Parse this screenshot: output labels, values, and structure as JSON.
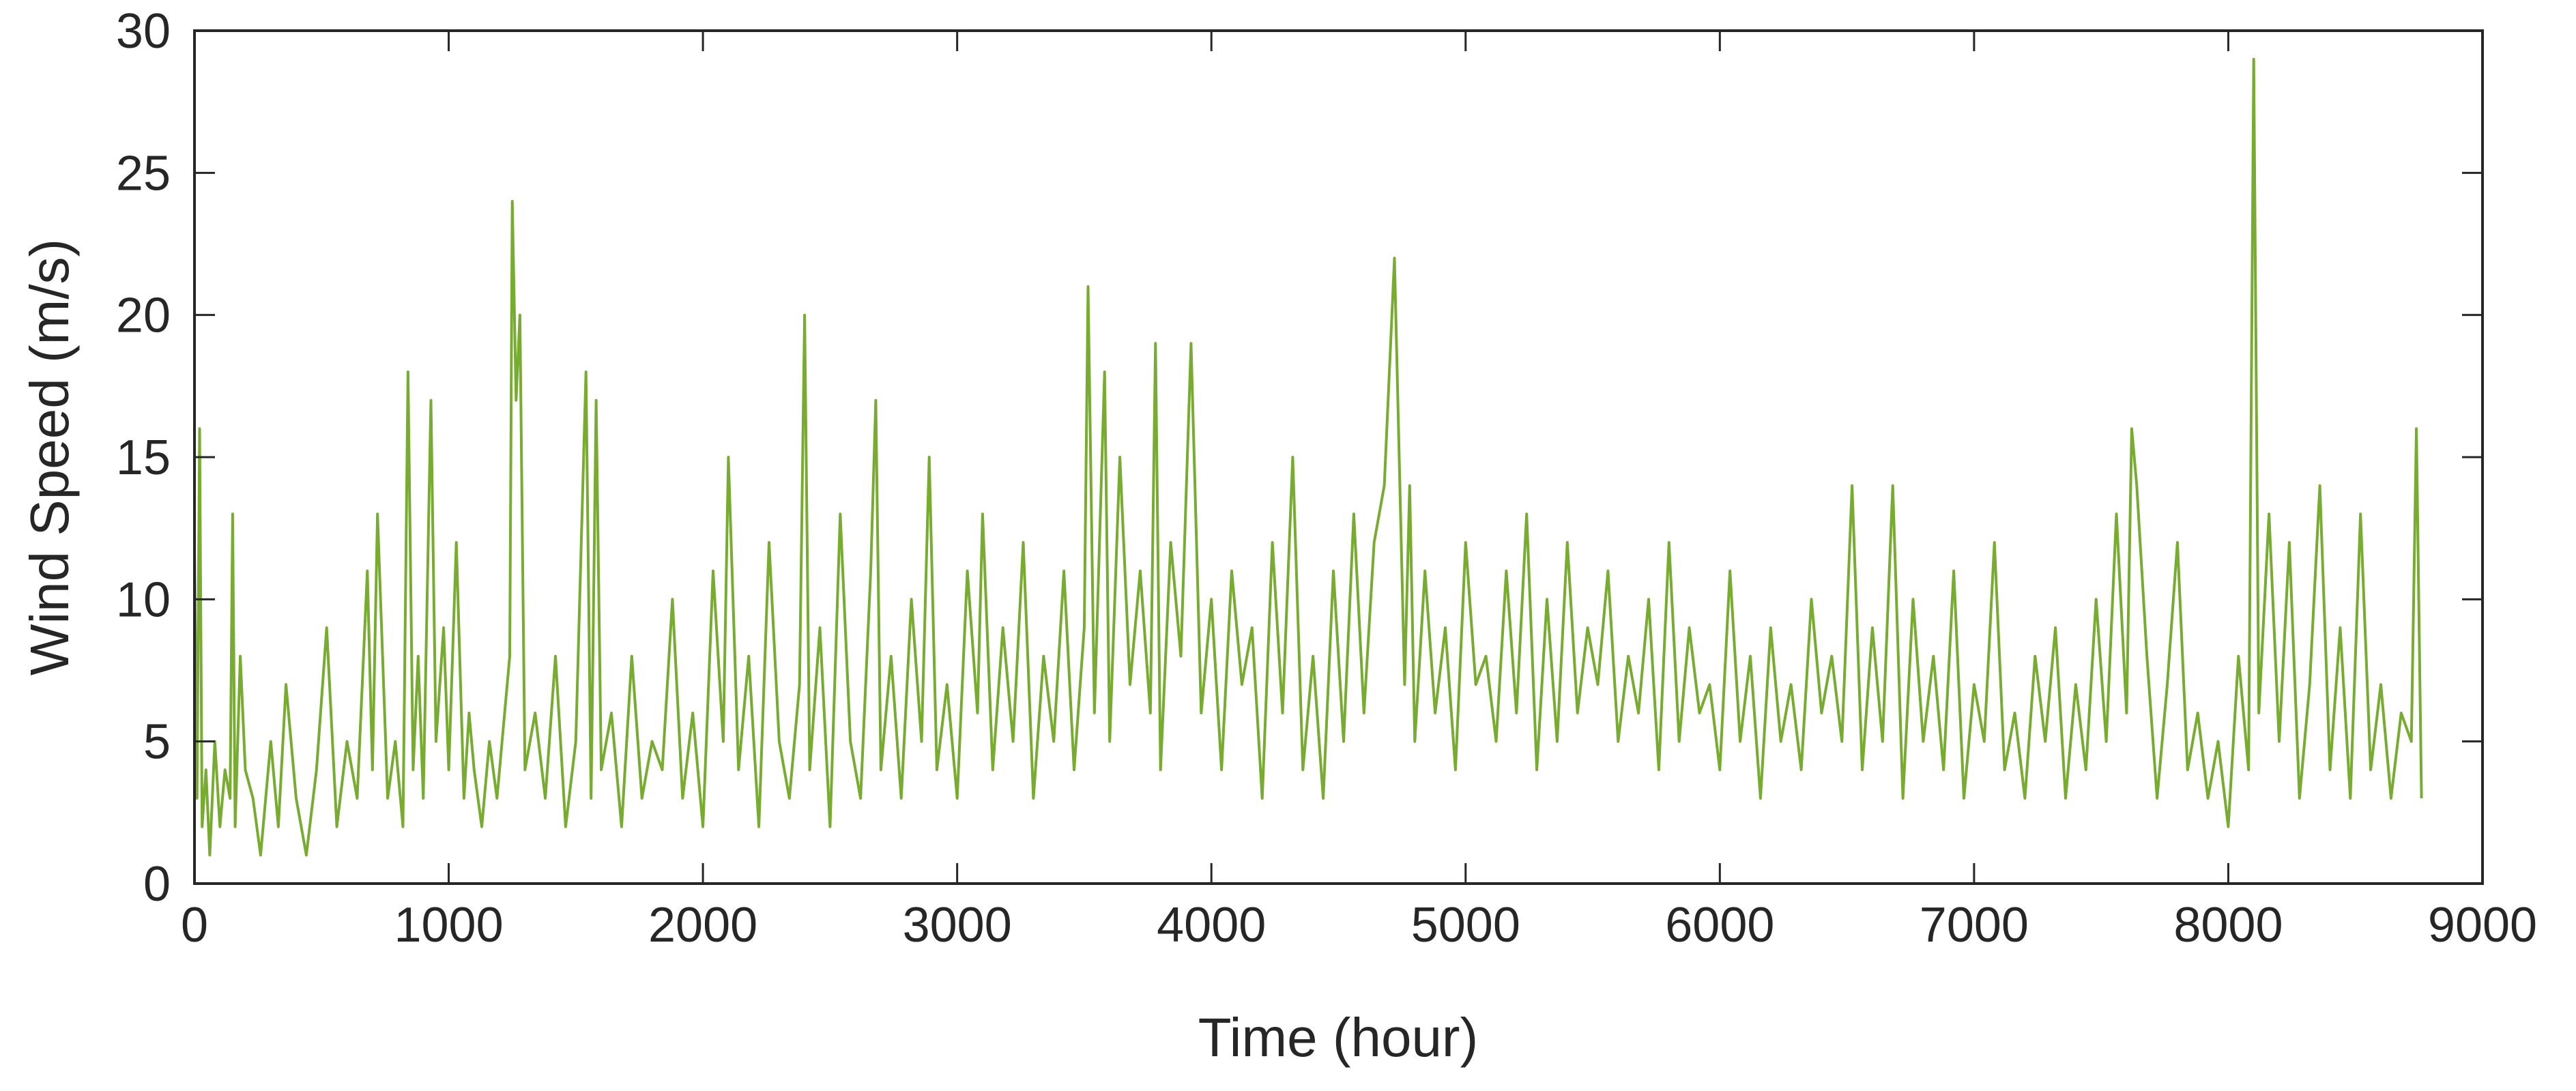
{
  "chart_data": {
    "type": "line",
    "title": "",
    "xlabel": "Time (hour)",
    "ylabel": "Wind Speed (m/s)",
    "xlim": [
      0,
      9000
    ],
    "ylim": [
      0,
      30
    ],
    "xticks": [
      0,
      1000,
      2000,
      3000,
      4000,
      5000,
      6000,
      7000,
      8000,
      9000
    ],
    "yticks": [
      0,
      5,
      10,
      15,
      20,
      25,
      30
    ],
    "grid": false,
    "legend": "none",
    "line_color": "#77ac30",
    "series": [
      {
        "x": [
          0,
          10,
          20,
          30,
          45,
          60,
          80,
          100,
          120,
          140,
          150,
          160,
          180,
          200,
          230,
          260,
          300,
          330,
          360,
          400,
          440,
          480,
          520,
          560,
          600,
          640,
          680,
          700,
          720,
          760,
          790,
          820,
          840,
          860,
          880,
          900,
          930,
          950,
          980,
          1000,
          1030,
          1060,
          1080,
          1100,
          1130,
          1160,
          1190,
          1220,
          1240,
          1250,
          1265,
          1280,
          1300,
          1340,
          1380,
          1420,
          1460,
          1500,
          1540,
          1560,
          1580,
          1600,
          1640,
          1680,
          1720,
          1760,
          1800,
          1840,
          1880,
          1920,
          1960,
          2000,
          2040,
          2080,
          2100,
          2140,
          2180,
          2220,
          2260,
          2300,
          2340,
          2380,
          2400,
          2420,
          2460,
          2500,
          2540,
          2580,
          2620,
          2660,
          2680,
          2700,
          2740,
          2780,
          2820,
          2860,
          2890,
          2920,
          2960,
          3000,
          3040,
          3080,
          3100,
          3140,
          3180,
          3220,
          3260,
          3300,
          3340,
          3380,
          3420,
          3460,
          3500,
          3515,
          3540,
          3580,
          3600,
          3640,
          3680,
          3720,
          3760,
          3780,
          3800,
          3840,
          3880,
          3920,
          3960,
          4000,
          4040,
          4080,
          4120,
          4160,
          4200,
          4240,
          4280,
          4320,
          4360,
          4400,
          4440,
          4480,
          4520,
          4560,
          4600,
          4640,
          4680,
          4720,
          4760,
          4780,
          4800,
          4840,
          4880,
          4920,
          4960,
          5000,
          5040,
          5080,
          5120,
          5160,
          5200,
          5240,
          5280,
          5320,
          5360,
          5400,
          5440,
          5480,
          5520,
          5560,
          5600,
          5640,
          5680,
          5720,
          5760,
          5800,
          5840,
          5880,
          5920,
          5960,
          6000,
          6040,
          6080,
          6120,
          6160,
          6200,
          6240,
          6280,
          6320,
          6360,
          6400,
          6440,
          6480,
          6520,
          6560,
          6600,
          6640,
          6680,
          6720,
          6760,
          6800,
          6840,
          6880,
          6920,
          6960,
          7000,
          7040,
          7080,
          7120,
          7160,
          7200,
          7240,
          7280,
          7320,
          7360,
          7400,
          7440,
          7480,
          7520,
          7560,
          7600,
          7620,
          7640,
          7680,
          7720,
          7760,
          7800,
          7840,
          7880,
          7920,
          7960,
          8000,
          8040,
          8080,
          8100,
          8120,
          8160,
          8200,
          8240,
          8280,
          8320,
          8360,
          8400,
          8440,
          8480,
          8520,
          8560,
          8600,
          8640,
          8680,
          8720,
          8740,
          8760
        ],
        "values": [
          12,
          3,
          16,
          2,
          4,
          1,
          5,
          2,
          4,
          3,
          13,
          2,
          8,
          4,
          3,
          1,
          5,
          2,
          7,
          3,
          1,
          4,
          9,
          2,
          5,
          3,
          11,
          4,
          13,
          3,
          5,
          2,
          18,
          4,
          8,
          3,
          17,
          5,
          9,
          4,
          12,
          3,
          6,
          4,
          2,
          5,
          3,
          6,
          8,
          24,
          17,
          20,
          4,
          6,
          3,
          8,
          2,
          5,
          18,
          3,
          17,
          4,
          6,
          2,
          8,
          3,
          5,
          4,
          10,
          3,
          6,
          2,
          11,
          5,
          15,
          4,
          8,
          2,
          12,
          5,
          3,
          7,
          20,
          4,
          9,
          2,
          13,
          5,
          3,
          11,
          17,
          4,
          8,
          3,
          10,
          5,
          15,
          4,
          7,
          3,
          11,
          6,
          13,
          4,
          9,
          5,
          12,
          3,
          8,
          5,
          11,
          4,
          9,
          21,
          6,
          18,
          5,
          15,
          7,
          11,
          6,
          19,
          4,
          12,
          8,
          19,
          6,
          10,
          4,
          11,
          7,
          9,
          3,
          12,
          6,
          15,
          4,
          8,
          3,
          11,
          5,
          13,
          6,
          12,
          14,
          22,
          7,
          14,
          5,
          11,
          6,
          9,
          4,
          12,
          7,
          8,
          5,
          11,
          6,
          13,
          4,
          10,
          5,
          12,
          6,
          9,
          7,
          11,
          5,
          8,
          6,
          10,
          4,
          12,
          5,
          9,
          6,
          7,
          4,
          11,
          5,
          8,
          3,
          9,
          5,
          7,
          4,
          10,
          6,
          8,
          5,
          14,
          4,
          9,
          5,
          14,
          3,
          10,
          5,
          8,
          4,
          11,
          3,
          7,
          5,
          12,
          4,
          6,
          3,
          8,
          5,
          9,
          3,
          7,
          4,
          10,
          5,
          13,
          6,
          16,
          14,
          8,
          3,
          7,
          12,
          4,
          6,
          3,
          5,
          2,
          8,
          4,
          29,
          6,
          13,
          5,
          12,
          3,
          7,
          14,
          4,
          9,
          3,
          13,
          4,
          7,
          3,
          6,
          5,
          16,
          3
        ]
      }
    ]
  }
}
